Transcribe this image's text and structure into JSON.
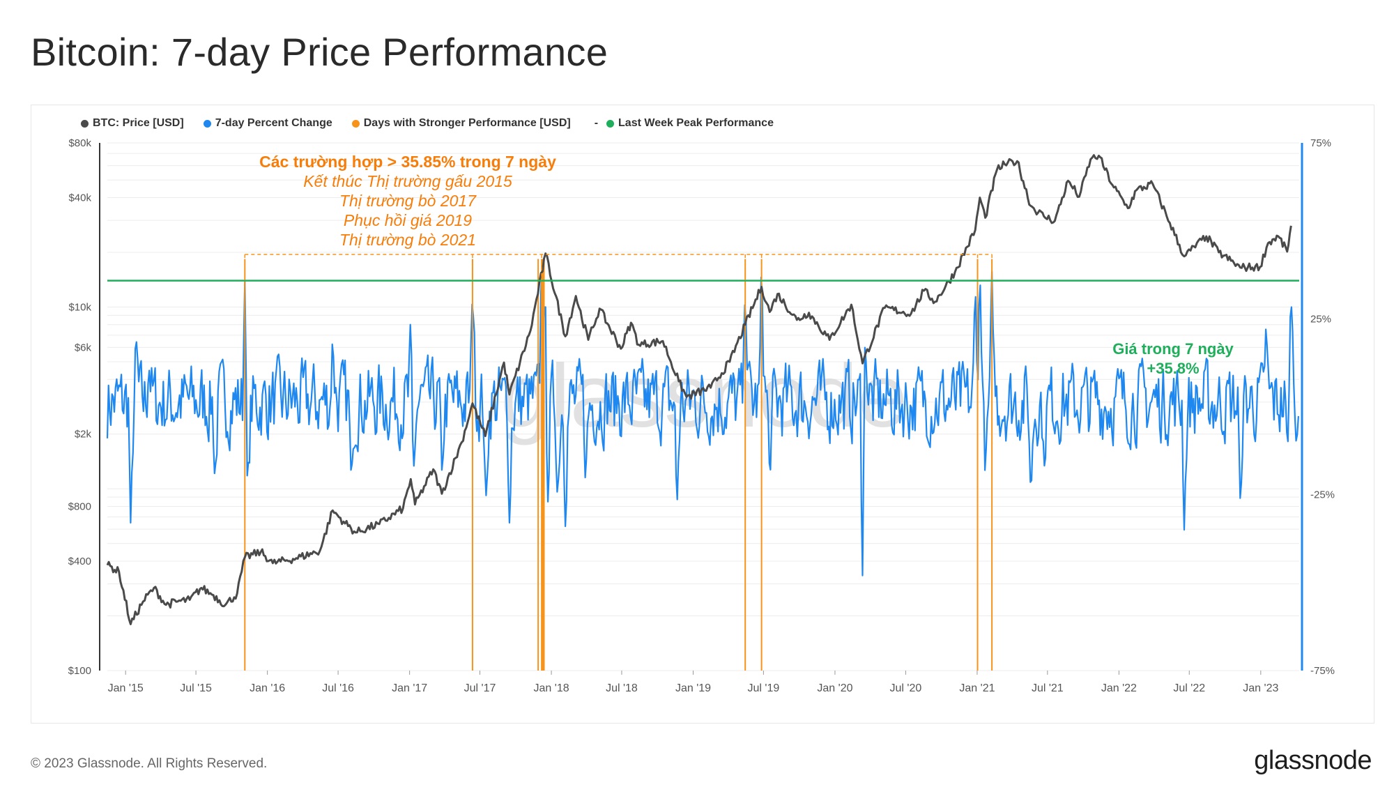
{
  "title": "Bitcoin: 7-day Price Performance",
  "legend": {
    "items": [
      {
        "label": "BTC: Price [USD]",
        "color": "#4a4a4a"
      },
      {
        "label": "7-day Percent Change",
        "color": "#1e88f0"
      },
      {
        "label": "Days with Stronger Performance [USD]",
        "color": "#f7931a"
      },
      {
        "label": "Last Week Peak Performance",
        "color": "#1fae5b",
        "prefix": "-"
      }
    ]
  },
  "annotation": {
    "headline": "Các trường hợp > 35.85% trong 7 ngày",
    "lines": [
      "Kết thúc Thị trường gấu 2015",
      "Thị trường bò 2017",
      "Phục hồi giá 2019",
      "Thị trường bò 2021"
    ]
  },
  "peak_label": {
    "line1": "Giá trong 7 ngày",
    "line2": "+35.8%"
  },
  "watermark": "glassnode",
  "footer": {
    "copyright": "© 2023 Glassnode. All Rights Reserved.",
    "logo": "glassnode"
  },
  "chart_data": {
    "type": "line",
    "x_tick_labels": [
      "Jan '15",
      "Jul '15",
      "Jan '16",
      "Jul '16",
      "Jan '17",
      "Jul '17",
      "Jan '18",
      "Jul '18",
      "Jan '19",
      "Jul '19",
      "Jan '20",
      "Jul '20",
      "Jan '21",
      "Jul '21",
      "Jan '22",
      "Jul '22",
      "Jan '23"
    ],
    "x_range": [
      "2014-11-15",
      "2023-04-10"
    ],
    "y_left": {
      "scale": "log",
      "ticks": [
        "$100",
        "$400",
        "$800",
        "$2k",
        "$6k",
        "$10k",
        "$40k",
        "$80k"
      ],
      "tick_values": [
        100,
        400,
        800,
        2000,
        6000,
        10000,
        40000,
        80000
      ],
      "range": [
        100,
        80000
      ]
    },
    "y_right": {
      "ticks": [
        "75%",
        "25%",
        "-25%",
        "-75%"
      ],
      "tick_values": [
        75,
        25,
        -25,
        -75
      ],
      "range": [
        -75,
        75
      ]
    },
    "price_series": {
      "name": "BTC: Price [USD]",
      "color": "#4a4a4a",
      "points": [
        [
          "2014-11-15",
          380
        ],
        [
          "2014-12-15",
          350
        ],
        [
          "2015-01-14",
          180
        ],
        [
          "2015-02-15",
          240
        ],
        [
          "2015-03-15",
          285
        ],
        [
          "2015-04-15",
          230
        ],
        [
          "2015-05-15",
          240
        ],
        [
          "2015-06-15",
          245
        ],
        [
          "2015-07-15",
          285
        ],
        [
          "2015-08-15",
          260
        ],
        [
          "2015-09-15",
          230
        ],
        [
          "2015-10-15",
          265
        ],
        [
          "2015-11-04",
          420
        ],
        [
          "2015-12-15",
          450
        ],
        [
          "2016-01-15",
          390
        ],
        [
          "2016-03-15",
          415
        ],
        [
          "2016-05-15",
          455
        ],
        [
          "2016-06-17",
          760
        ],
        [
          "2016-07-15",
          660
        ],
        [
          "2016-08-15",
          575
        ],
        [
          "2016-10-15",
          640
        ],
        [
          "2016-12-15",
          780
        ],
        [
          "2017-01-04",
          1130
        ],
        [
          "2017-01-15",
          820
        ],
        [
          "2017-03-03",
          1280
        ],
        [
          "2017-03-25",
          940
        ],
        [
          "2017-05-15",
          1800
        ],
        [
          "2017-06-12",
          2950
        ],
        [
          "2017-07-15",
          1950
        ],
        [
          "2017-09-01",
          4950
        ],
        [
          "2017-09-15",
          3300
        ],
        [
          "2017-11-08",
          7400
        ],
        [
          "2017-12-17",
          19700
        ],
        [
          "2018-02-06",
          6900
        ],
        [
          "2018-03-05",
          11500
        ],
        [
          "2018-04-06",
          6600
        ],
        [
          "2018-05-05",
          9800
        ],
        [
          "2018-06-29",
          5900
        ],
        [
          "2018-07-25",
          8200
        ],
        [
          "2018-08-14",
          6200
        ],
        [
          "2018-10-15",
          6500
        ],
        [
          "2018-11-25",
          3900
        ],
        [
          "2018-12-15",
          3200
        ],
        [
          "2019-02-15",
          3600
        ],
        [
          "2019-04-05",
          5000
        ],
        [
          "2019-05-15",
          8000
        ],
        [
          "2019-06-26",
          12900
        ],
        [
          "2019-07-17",
          9400
        ],
        [
          "2019-08-06",
          11800
        ],
        [
          "2019-09-25",
          8500
        ],
        [
          "2019-10-26",
          9300
        ],
        [
          "2019-12-18",
          6600
        ],
        [
          "2020-02-12",
          10300
        ],
        [
          "2020-03-12",
          4900
        ],
        [
          "2020-05-08",
          9900
        ],
        [
          "2020-07-15",
          9200
        ],
        [
          "2020-08-17",
          12300
        ],
        [
          "2020-09-15",
          10700
        ],
        [
          "2020-11-05",
          15600
        ],
        [
          "2020-12-27",
          26500
        ],
        [
          "2021-01-08",
          40000
        ],
        [
          "2021-01-22",
          31000
        ],
        [
          "2021-02-21",
          57000
        ],
        [
          "2021-03-13",
          61000
        ],
        [
          "2021-04-14",
          63500
        ],
        [
          "2021-05-19",
          36000
        ],
        [
          "2021-06-22",
          31500
        ],
        [
          "2021-07-20",
          29800
        ],
        [
          "2021-08-23",
          49500
        ],
        [
          "2021-09-21",
          40500
        ],
        [
          "2021-10-20",
          65000
        ],
        [
          "2021-11-10",
          68000
        ],
        [
          "2021-12-15",
          47000
        ],
        [
          "2022-01-24",
          35000
        ],
        [
          "2022-02-15",
          44000
        ],
        [
          "2022-03-29",
          47500
        ],
        [
          "2022-05-12",
          29000
        ],
        [
          "2022-06-18",
          19000
        ],
        [
          "2022-08-14",
          24500
        ],
        [
          "2022-09-15",
          20000
        ],
        [
          "2022-11-09",
          16500
        ],
        [
          "2022-12-30",
          16600
        ],
        [
          "2023-01-20",
          22500
        ],
        [
          "2023-02-15",
          24500
        ],
        [
          "2023-03-10",
          20200
        ],
        [
          "2023-03-20",
          28000
        ]
      ]
    },
    "pct_series": {
      "name": "7-day Percent Change",
      "color": "#1e88f0",
      "spikes": [
        [
          "2015-01-14",
          -33
        ],
        [
          "2015-01-28",
          20
        ],
        [
          "2015-03-02",
          12
        ],
        [
          "2015-08-19",
          -22
        ],
        [
          "2015-11-04",
          35.8
        ],
        [
          "2015-11-11",
          -25
        ],
        [
          "2016-06-17",
          20
        ],
        [
          "2016-08-03",
          -18
        ],
        [
          "2017-01-04",
          25
        ],
        [
          "2017-01-11",
          -20
        ],
        [
          "2017-03-25",
          -18
        ],
        [
          "2017-06-12",
          35
        ],
        [
          "2017-07-16",
          -30
        ],
        [
          "2017-09-15",
          -33
        ],
        [
          "2017-12-07",
          45
        ],
        [
          "2017-12-17",
          40
        ],
        [
          "2017-12-22",
          -30
        ],
        [
          "2018-01-17",
          -28
        ],
        [
          "2018-02-06",
          -34
        ],
        [
          "2018-03-30",
          -22
        ],
        [
          "2018-11-20",
          -30
        ],
        [
          "2019-05-15",
          35
        ],
        [
          "2019-06-26",
          41
        ],
        [
          "2019-07-17",
          -20
        ],
        [
          "2020-03-12",
          -48
        ],
        [
          "2020-03-19",
          20
        ],
        [
          "2020-12-27",
          35
        ],
        [
          "2021-01-08",
          39
        ],
        [
          "2021-01-22",
          -20
        ],
        [
          "2021-02-08",
          38.5
        ],
        [
          "2021-05-19",
          -26
        ],
        [
          "2021-06-22",
          -18
        ],
        [
          "2022-06-18",
          -35
        ],
        [
          "2022-11-09",
          -26
        ],
        [
          "2023-01-14",
          22
        ],
        [
          "2023-03-10",
          -10
        ],
        [
          "2023-03-20",
          34
        ]
      ],
      "baseline_range": [
        -10,
        12
      ]
    },
    "stronger_days": {
      "name": "Days with Stronger Performance [USD]",
      "color": "#f7931a",
      "dates": [
        "2015-11-04",
        "2017-06-12",
        "2017-11-28",
        "2017-12-07",
        "2017-12-10",
        "2017-12-13",
        "2019-05-15",
        "2019-06-26",
        "2021-01-02",
        "2021-02-08"
      ]
    },
    "peak_line": {
      "name": "Last Week Peak Performance",
      "value": 35.85,
      "color": "#1fae5b"
    }
  }
}
